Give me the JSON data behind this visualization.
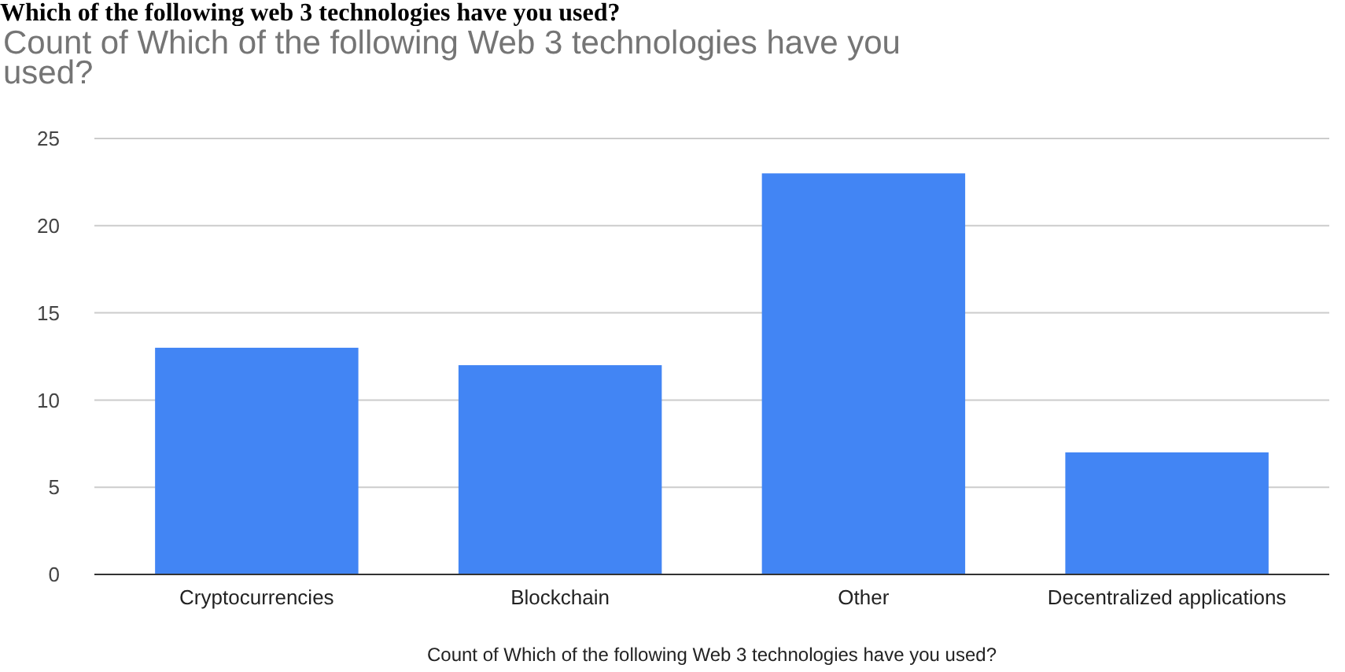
{
  "chart_data": {
    "type": "bar",
    "title": "Which of the following web 3 technologies have you used?",
    "subtitle": "Count of Which of the following Web 3 technologies have you used?",
    "xlabel": "Count of Which of the following Web 3 technologies have you used?",
    "categories": [
      "Cryptocurrencies",
      "Blockchain",
      "Other",
      "Decentralized applications"
    ],
    "values": [
      13,
      12,
      23,
      7
    ],
    "color": "#4285f4",
    "ylim": [
      0,
      25
    ],
    "yticks": [
      0,
      5,
      10,
      15,
      20,
      25
    ],
    "grid": "y"
  }
}
